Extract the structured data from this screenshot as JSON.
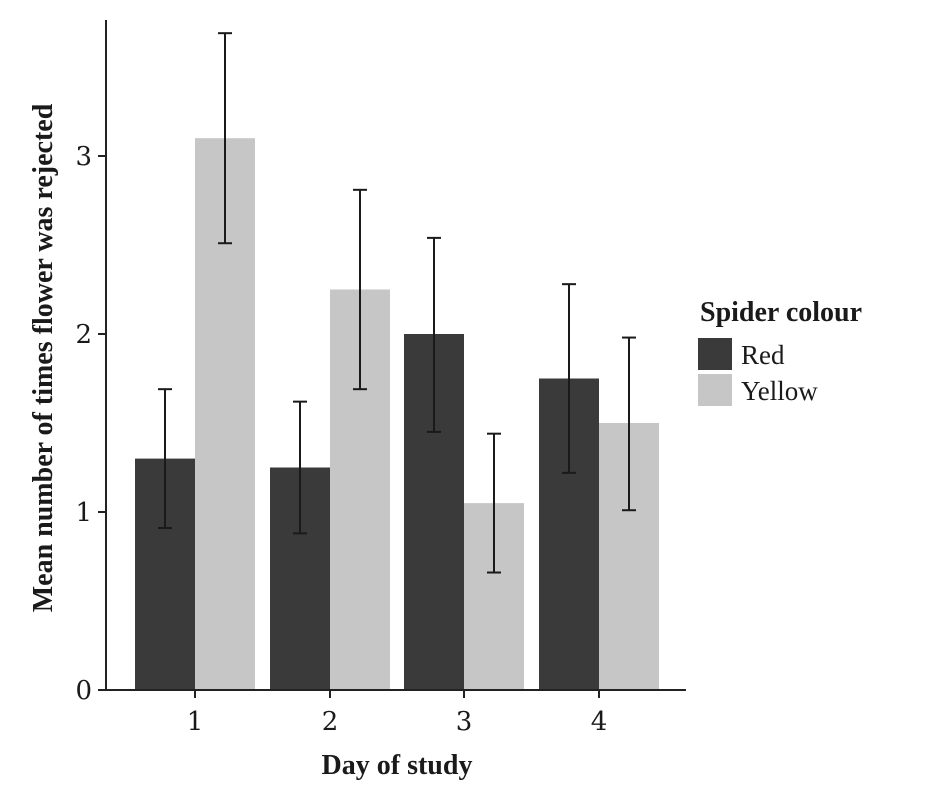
{
  "chart_data": {
    "type": "bar",
    "xlabel": "Day of study",
    "ylabel": "Mean number of times flower was rejected",
    "categories": [
      "1",
      "2",
      "3",
      "4"
    ],
    "ylim": [
      0,
      3.75
    ],
    "yticks": [
      "0",
      "1",
      "2",
      "3"
    ],
    "legend": {
      "title": "Spider colour",
      "placement": "right"
    },
    "series": [
      {
        "name": "Red",
        "color": "#3a3a3a",
        "values": [
          1.3,
          1.25,
          2.0,
          1.75
        ],
        "error_low": [
          0.91,
          0.88,
          1.45,
          1.22
        ],
        "error_high": [
          1.69,
          1.62,
          2.54,
          2.28
        ]
      },
      {
        "name": "Yellow",
        "color": "#c6c6c6",
        "values": [
          3.1,
          2.25,
          1.05,
          1.5
        ],
        "error_low": [
          2.51,
          1.69,
          0.66,
          1.01
        ],
        "error_high": [
          3.69,
          2.81,
          1.44,
          1.98
        ]
      }
    ]
  }
}
